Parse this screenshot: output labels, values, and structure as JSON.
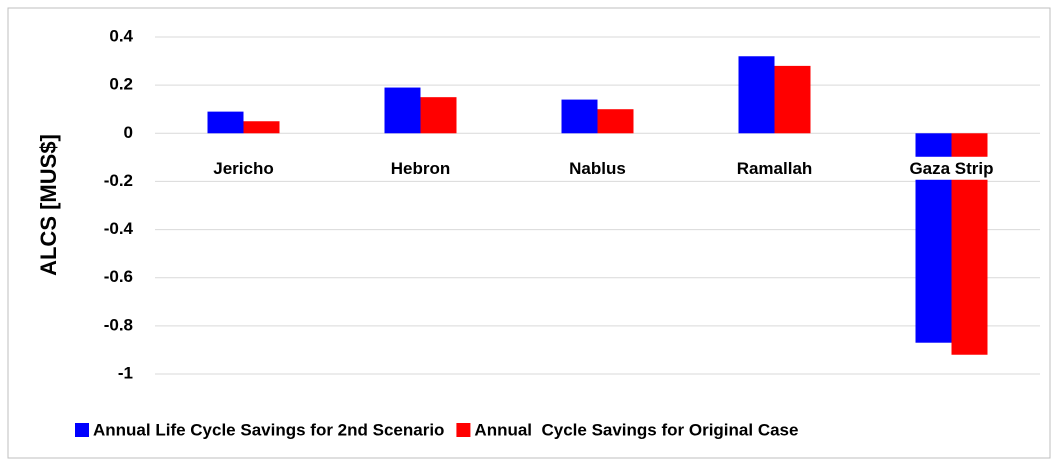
{
  "chart_data": {
    "type": "bar",
    "y_label": "ALCS [MUS$]",
    "categories": [
      "Jericho",
      "Hebron",
      "Nablus",
      "Ramallah",
      "Gaza Strip"
    ],
    "series": [
      {
        "name": "Annual Life Cycle Savings for 2nd Scenario",
        "color": "#0000ff",
        "values": [
          0.09,
          0.19,
          0.14,
          0.32,
          -0.87
        ]
      },
      {
        "name": "Annual  Cycle Savings for Original Case",
        "color": "#ff0000",
        "values": [
          0.05,
          0.15,
          0.1,
          0.28,
          -0.92
        ]
      }
    ],
    "ylim": [
      -1,
      0.4
    ],
    "yticks": [
      -1,
      -0.8,
      -0.6,
      -0.4,
      -0.2,
      0,
      0.2,
      0.4
    ],
    "grid": true,
    "legend": "bottom"
  }
}
